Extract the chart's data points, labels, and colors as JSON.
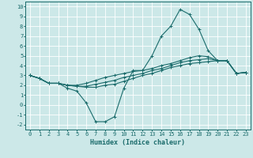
{
  "xlabel": "Humidex (Indice chaleur)",
  "background_color": "#cce8e8",
  "grid_color": "#ffffff",
  "line_color": "#1a6b6b",
  "xlim": [
    -0.5,
    23.5
  ],
  "ylim": [
    -2.5,
    10.5
  ],
  "xticks": [
    0,
    1,
    2,
    3,
    4,
    5,
    6,
    7,
    8,
    9,
    10,
    11,
    12,
    13,
    14,
    15,
    16,
    17,
    18,
    19,
    20,
    21,
    22,
    23
  ],
  "yticks": [
    -2,
    -1,
    0,
    1,
    2,
    3,
    4,
    5,
    6,
    7,
    8,
    9,
    10
  ],
  "series": [
    [
      3.0,
      2.7,
      2.2,
      2.2,
      1.7,
      1.4,
      0.2,
      -1.7,
      -1.7,
      -1.2,
      1.7,
      3.5,
      3.5,
      5.0,
      7.0,
      8.0,
      9.7,
      9.2,
      7.7,
      5.5,
      4.5,
      4.5,
      3.2,
      3.3
    ],
    [
      3.0,
      2.7,
      2.2,
      2.2,
      2.0,
      1.9,
      1.8,
      1.8,
      2.0,
      2.1,
      2.4,
      2.7,
      3.0,
      3.2,
      3.5,
      3.8,
      4.0,
      4.2,
      4.3,
      4.4,
      4.5,
      4.5,
      3.2,
      3.3
    ],
    [
      3.0,
      2.7,
      2.2,
      2.2,
      2.0,
      1.9,
      1.9,
      2.1,
      2.3,
      2.5,
      2.8,
      3.0,
      3.2,
      3.5,
      3.7,
      4.0,
      4.3,
      4.5,
      4.6,
      4.7,
      4.5,
      4.5,
      3.2,
      3.3
    ],
    [
      3.0,
      2.7,
      2.2,
      2.2,
      2.0,
      2.0,
      2.2,
      2.5,
      2.8,
      3.0,
      3.2,
      3.4,
      3.5,
      3.7,
      4.0,
      4.2,
      4.5,
      4.8,
      5.0,
      4.9,
      4.5,
      4.5,
      3.2,
      3.3
    ]
  ],
  "tick_fontsize": 5.0,
  "xlabel_fontsize": 6.0,
  "linewidth": 0.8,
  "markersize": 2.5
}
